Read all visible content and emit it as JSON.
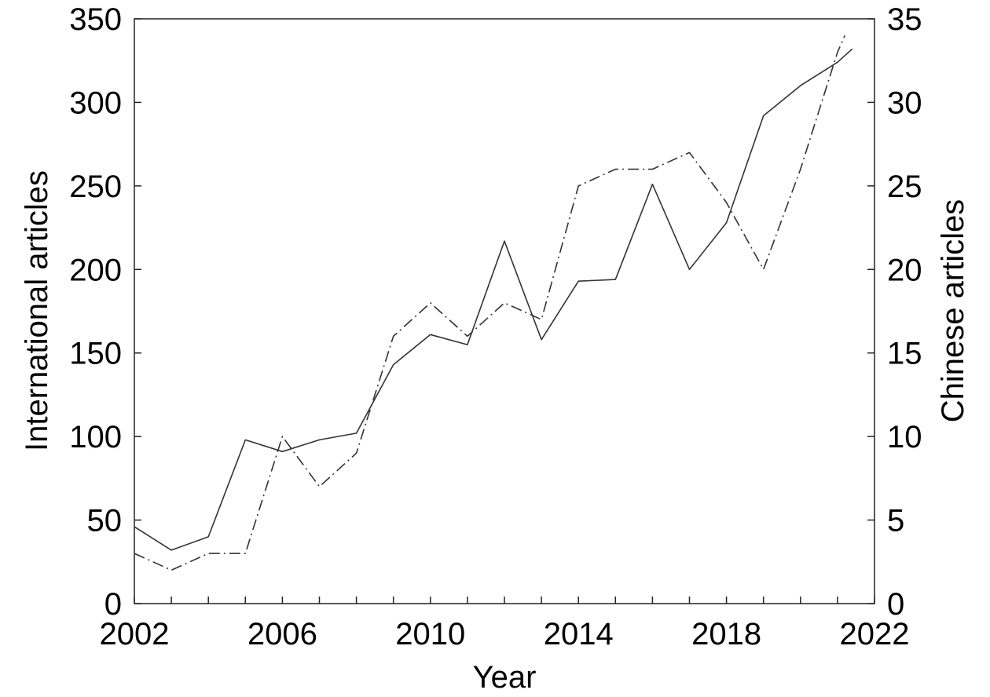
{
  "chart_data": {
    "type": "line",
    "xlabel": "Year",
    "ylabel": "International articles",
    "y2label": "Chinese articles",
    "xlim": [
      2002,
      2022
    ],
    "ylim": [
      0,
      350
    ],
    "y2lim": [
      0,
      35
    ],
    "xticks": [
      "2002",
      "2006",
      "2010",
      "2014",
      "2018",
      "2022"
    ],
    "yticks": [
      "0",
      "50",
      "100",
      "150",
      "200",
      "250",
      "300",
      "350"
    ],
    "y2ticks": [
      "0",
      "5",
      "10",
      "15",
      "20",
      "25",
      "30",
      "35"
    ],
    "grid": false,
    "legend": "none",
    "series": [
      {
        "axis": "left",
        "style": "solid",
        "color": "#333333",
        "x": [
          2002,
          2003,
          2004,
          2005,
          2006,
          2007,
          2008,
          2009,
          2010,
          2011,
          2012,
          2013,
          2014,
          2015,
          2016,
          2017,
          2018,
          2019,
          2020,
          2021,
          2021.4
        ],
        "values": [
          46,
          32,
          40,
          98,
          91,
          98,
          102,
          143,
          161,
          155,
          217,
          158,
          193,
          194,
          251,
          200,
          228,
          292,
          310,
          324,
          332
        ]
      },
      {
        "axis": "right",
        "style": "dash-dot",
        "color": "#333333",
        "x": [
          2002,
          2003,
          2004,
          2005,
          2006,
          2007,
          2008,
          2009,
          2010,
          2011,
          2012,
          2013,
          2014,
          2015,
          2016,
          2017,
          2018,
          2019,
          2020,
          2021,
          2021.2
        ],
        "values": [
          3,
          2,
          3,
          3,
          10,
          7,
          9,
          16,
          18,
          16,
          18,
          17,
          25,
          26,
          26,
          27,
          24,
          20,
          26,
          33,
          34
        ]
      }
    ]
  }
}
